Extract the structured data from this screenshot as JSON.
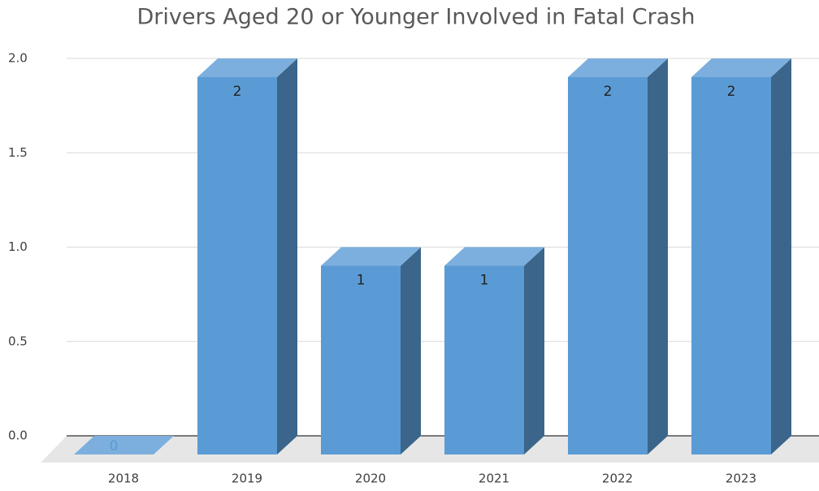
{
  "chart_data": {
    "type": "bar3d",
    "title": "Drivers Aged 20 or Younger Involved in Fatal Crash",
    "categories": [
      "2018",
      "2019",
      "2020",
      "2021",
      "2022",
      "2023"
    ],
    "values": [
      0,
      2,
      1,
      1,
      2,
      2
    ],
    "color": "#5b9bd5",
    "ylim": [
      0,
      2
    ],
    "yticks": [
      {
        "value": 0,
        "label": "0.0"
      },
      {
        "value": 0.5,
        "label": "0.5"
      },
      {
        "value": 1,
        "label": "1.0"
      },
      {
        "value": 1.5,
        "label": "1.5"
      },
      {
        "value": 2,
        "label": "2.0"
      }
    ],
    "grid": true
  }
}
